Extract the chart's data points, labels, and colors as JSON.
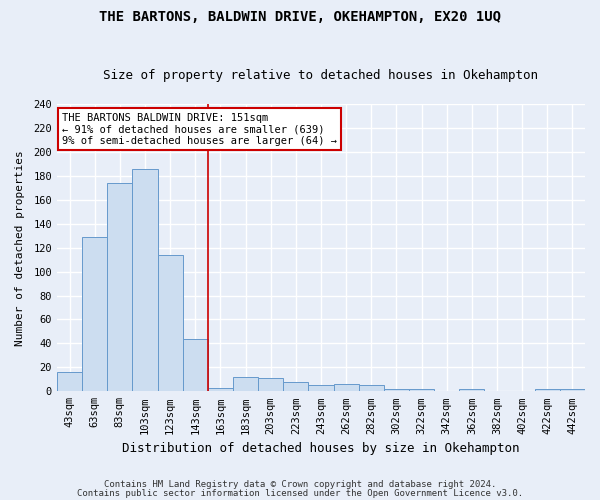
{
  "title": "THE BARTONS, BALDWIN DRIVE, OKEHAMPTON, EX20 1UQ",
  "subtitle": "Size of property relative to detached houses in Okehampton",
  "xlabel": "Distribution of detached houses by size in Okehampton",
  "ylabel": "Number of detached properties",
  "footer_line1": "Contains HM Land Registry data © Crown copyright and database right 2024.",
  "footer_line2": "Contains public sector information licensed under the Open Government Licence v3.0.",
  "bar_labels": [
    "43sqm",
    "63sqm",
    "83sqm",
    "103sqm",
    "123sqm",
    "143sqm",
    "163sqm",
    "183sqm",
    "203sqm",
    "223sqm",
    "243sqm",
    "262sqm",
    "282sqm",
    "302sqm",
    "322sqm",
    "342sqm",
    "362sqm",
    "382sqm",
    "402sqm",
    "422sqm",
    "442sqm"
  ],
  "bar_values": [
    16,
    129,
    174,
    186,
    114,
    44,
    3,
    12,
    11,
    8,
    5,
    6,
    5,
    2,
    2,
    0,
    2,
    0,
    0,
    2,
    2
  ],
  "bar_color": "#ccddf0",
  "bar_edge_color": "#6699cc",
  "background_color": "#e8eef8",
  "grid_color": "#ffffff",
  "vline_x": 5.5,
  "vline_color": "#cc0000",
  "annotation_text": "THE BARTONS BALDWIN DRIVE: 151sqm\n← 91% of detached houses are smaller (639)\n9% of semi-detached houses are larger (64) →",
  "annotation_box_color": "#ffffff",
  "annotation_box_edge": "#cc0000",
  "ylim": [
    0,
    240
  ],
  "yticks": [
    0,
    20,
    40,
    60,
    80,
    100,
    120,
    140,
    160,
    180,
    200,
    220,
    240
  ],
  "title_fontsize": 10,
  "subtitle_fontsize": 9,
  "xlabel_fontsize": 9,
  "ylabel_fontsize": 8,
  "tick_fontsize": 7.5,
  "annotation_fontsize": 7.5,
  "footer_fontsize": 6.5
}
